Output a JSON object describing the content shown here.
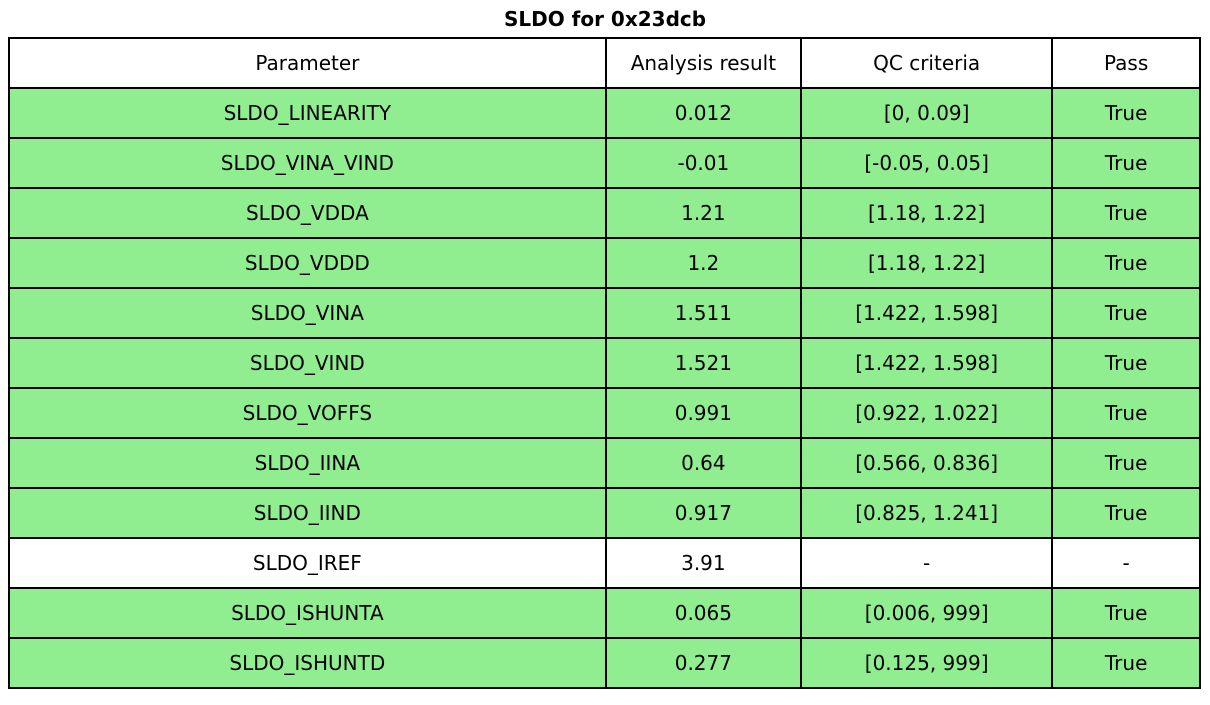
{
  "title": "SLDO for 0x23dcb",
  "colors": {
    "pass_green": "#90EE90",
    "default_row": "#FFFFFF",
    "border": "#000000"
  },
  "chart_data": {
    "type": "table",
    "title": "SLDO for 0x23dcb",
    "columns": [
      "Parameter",
      "Analysis result",
      "QC criteria",
      "Pass"
    ],
    "rows": [
      {
        "parameter": "SLDO_LINEARITY",
        "result": "0.012",
        "criteria": "[0, 0.09]",
        "pass": "True",
        "highlight": true
      },
      {
        "parameter": "SLDO_VINA_VIND",
        "result": "-0.01",
        "criteria": "[-0.05, 0.05]",
        "pass": "True",
        "highlight": true
      },
      {
        "parameter": "SLDO_VDDA",
        "result": "1.21",
        "criteria": "[1.18, 1.22]",
        "pass": "True",
        "highlight": true
      },
      {
        "parameter": "SLDO_VDDD",
        "result": "1.2",
        "criteria": "[1.18, 1.22]",
        "pass": "True",
        "highlight": true
      },
      {
        "parameter": "SLDO_VINA",
        "result": "1.511",
        "criteria": "[1.422, 1.598]",
        "pass": "True",
        "highlight": true
      },
      {
        "parameter": "SLDO_VIND",
        "result": "1.521",
        "criteria": "[1.422, 1.598]",
        "pass": "True",
        "highlight": true
      },
      {
        "parameter": "SLDO_VOFFS",
        "result": "0.991",
        "criteria": "[0.922, 1.022]",
        "pass": "True",
        "highlight": true
      },
      {
        "parameter": "SLDO_IINA",
        "result": "0.64",
        "criteria": "[0.566, 0.836]",
        "pass": "True",
        "highlight": true
      },
      {
        "parameter": "SLDO_IIND",
        "result": "0.917",
        "criteria": "[0.825, 1.241]",
        "pass": "True",
        "highlight": true
      },
      {
        "parameter": "SLDO_IREF",
        "result": "3.91",
        "criteria": "-",
        "pass": "-",
        "highlight": false
      },
      {
        "parameter": "SLDO_ISHUNTA",
        "result": "0.065",
        "criteria": "[0.006, 999]",
        "pass": "True",
        "highlight": true
      },
      {
        "parameter": "SLDO_ISHUNTD",
        "result": "0.277",
        "criteria": "[0.125, 999]",
        "pass": "True",
        "highlight": true
      }
    ]
  }
}
